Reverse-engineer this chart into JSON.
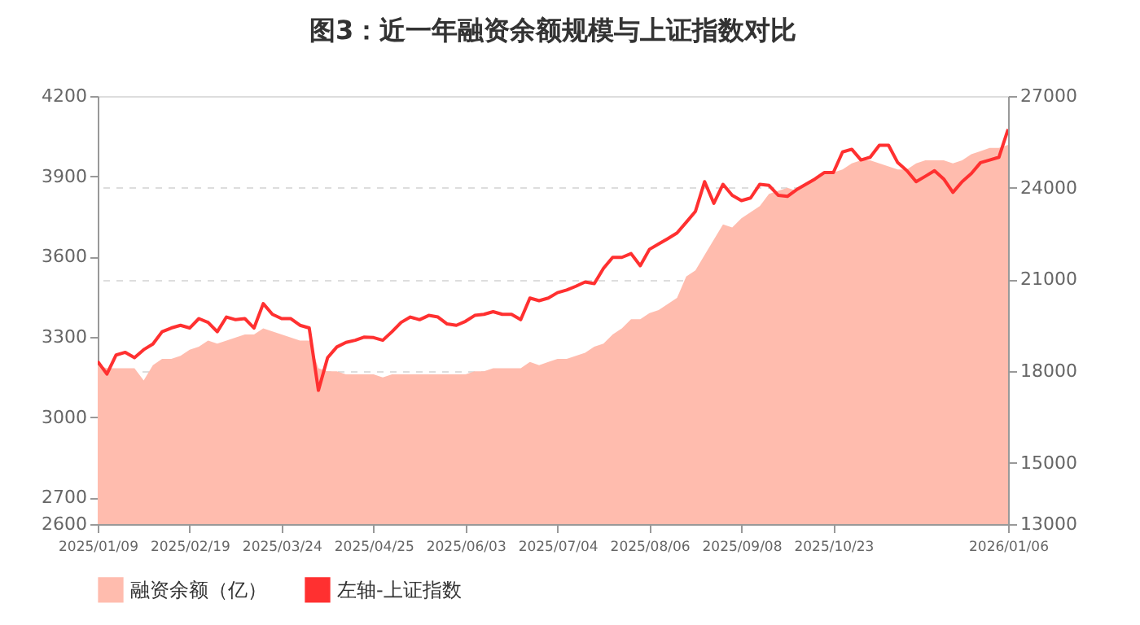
{
  "chart_data": {
    "type": "line",
    "title": "图3：近一年融资余额规模与上证指数对比",
    "categories": [
      "2025/01/09",
      null,
      null,
      null,
      null,
      null,
      null,
      null,
      null,
      null,
      "2025/02/19",
      null,
      null,
      null,
      null,
      null,
      null,
      null,
      null,
      null,
      "2025/03/24",
      null,
      null,
      null,
      null,
      null,
      null,
      null,
      null,
      null,
      "2025/04/25",
      null,
      null,
      null,
      null,
      null,
      null,
      null,
      null,
      null,
      "2025/06/03",
      null,
      null,
      null,
      null,
      null,
      null,
      null,
      null,
      null,
      "2025/07/04",
      null,
      null,
      null,
      null,
      null,
      null,
      null,
      null,
      null,
      "2025/08/06",
      null,
      null,
      null,
      null,
      null,
      null,
      null,
      null,
      null,
      "2025/09/08",
      null,
      null,
      null,
      null,
      null,
      null,
      null,
      null,
      null,
      "2025/10/23",
      null,
      null,
      null,
      null,
      null,
      null,
      null,
      null,
      null,
      null,
      null,
      null,
      null,
      null,
      null,
      null,
      null,
      null,
      "2026/01/06"
    ],
    "series": [
      {
        "name": "融资余额（亿）",
        "type": "area",
        "axis": "y2",
        "color": "#ffbcae",
        "values": [
          18200,
          18100,
          18100,
          18100,
          18100,
          17700,
          18200,
          18400,
          18400,
          18500,
          18700,
          18800,
          19000,
          18900,
          19000,
          19100,
          19200,
          19200,
          19400,
          19300,
          19200,
          19100,
          19000,
          19000,
          18100,
          18000,
          18000,
          17900,
          17900,
          17900,
          17900,
          17800,
          17900,
          17900,
          17900,
          17900,
          17900,
          17900,
          17900,
          17900,
          17900,
          18000,
          18000,
          18100,
          18100,
          18100,
          18100,
          18300,
          18200,
          18300,
          18400,
          18400,
          18500,
          18600,
          18800,
          18900,
          19200,
          19400,
          19700,
          19700,
          19900,
          20000,
          20200,
          20400,
          21100,
          21300,
          21800,
          22300,
          22800,
          22700,
          23000,
          23200,
          23400,
          23800,
          23900,
          24000,
          23900,
          24100,
          24300,
          24500,
          24500,
          24600,
          24800,
          24900,
          24900,
          24800,
          24700,
          24600,
          24600,
          24800,
          24900,
          24900,
          24900,
          24800,
          24900,
          25100,
          25200,
          25300,
          25300,
          25400
        ]
      },
      {
        "name": "左轴-上证指数",
        "color": "#ff3030",
        "values": [
          3208,
          3161,
          3232,
          3242,
          3222,
          3252,
          3273,
          3319,
          3333,
          3343,
          3333,
          3368,
          3354,
          3319,
          3374,
          3364,
          3368,
          3333,
          3424,
          3384,
          3368,
          3368,
          3343,
          3333,
          3100,
          3222,
          3262,
          3279,
          3287,
          3299,
          3297,
          3287,
          3319,
          3354,
          3374,
          3364,
          3380,
          3374,
          3348,
          3343,
          3358,
          3380,
          3384,
          3394,
          3384,
          3384,
          3364,
          3445,
          3435,
          3445,
          3465,
          3475,
          3489,
          3505,
          3499,
          3556,
          3597,
          3597,
          3611,
          3566,
          3627,
          3647,
          3667,
          3688,
          3728,
          3769,
          3880,
          3799,
          3870,
          3829,
          3809,
          3819,
          3870,
          3866,
          3829,
          3825,
          3850,
          3870,
          3890,
          3914,
          3914,
          3991,
          4001,
          3961,
          3971,
          4016,
          4016,
          3951,
          3921,
          3880,
          3900,
          3921,
          3890,
          3840,
          3880,
          3910,
          3951,
          3961,
          3971,
          4076
        ]
      }
    ],
    "ylim": [
      2600,
      4200
    ],
    "yticks": [
      2600,
      2700,
      3000,
      3300,
      3600,
      3900,
      4200
    ],
    "y2lim": [
      13000,
      27000
    ],
    "y2ticks": [
      13000,
      15000,
      18000,
      21000,
      24000,
      27000
    ],
    "grid": "y2",
    "legend": "bottom"
  }
}
